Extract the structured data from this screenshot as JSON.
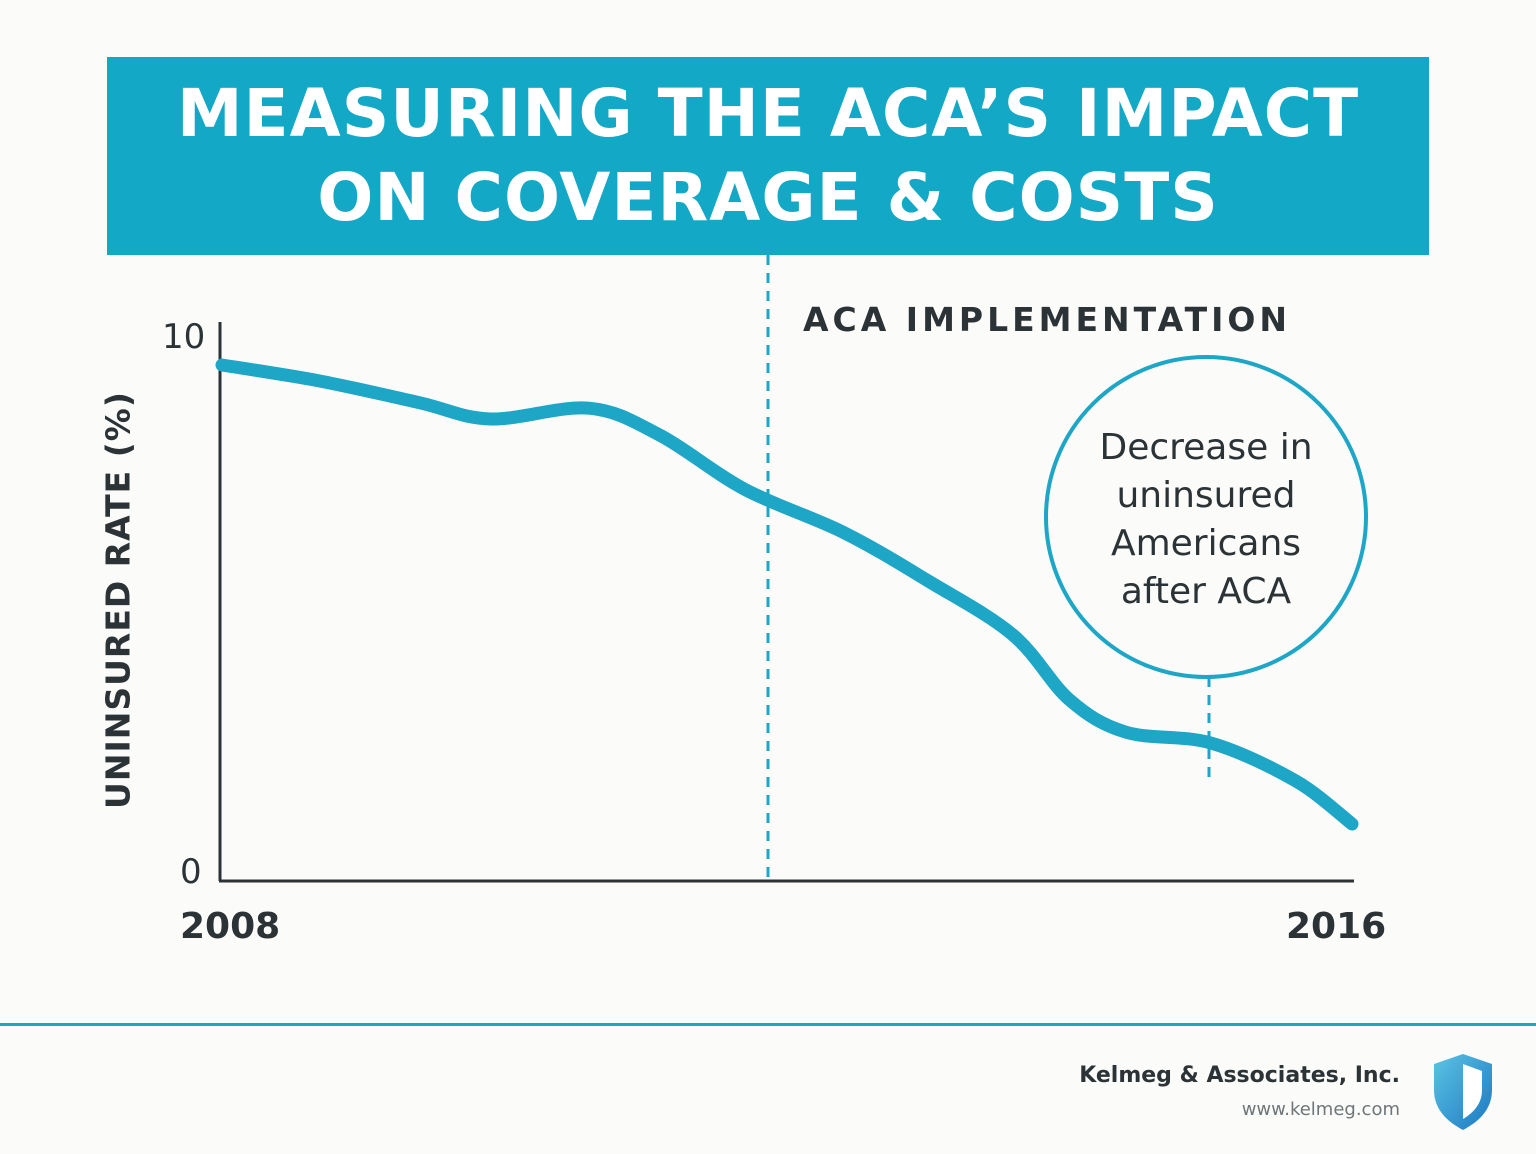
{
  "title": {
    "line1": "MEASURING THE ACA’S IMPACT",
    "line2": "ON COVERAGE & COSTS"
  },
  "chart_data": {
    "type": "line",
    "ylabel": "UNINSURED RATE (%)",
    "xlabel": "",
    "ylim": [
      0,
      10
    ],
    "yticks": [
      "10",
      "0"
    ],
    "xlim": [
      2008,
      2016
    ],
    "xticks": [
      "2008",
      "2016"
    ],
    "grid": false,
    "series": [
      {
        "color": "#1ea6c6",
        "points": [
          [
            2008.0,
            9.5
          ],
          [
            2008.7,
            9.2
          ],
          [
            2009.4,
            8.8
          ],
          [
            2009.9,
            8.5
          ],
          [
            2010.6,
            8.7
          ],
          [
            2011.1,
            8.2
          ],
          [
            2011.7,
            7.2
          ],
          [
            2012.4,
            6.4
          ],
          [
            2013.0,
            5.5
          ],
          [
            2013.6,
            4.5
          ],
          [
            2014.0,
            3.3
          ],
          [
            2014.4,
            2.7
          ],
          [
            2015.0,
            2.5
          ],
          [
            2015.6,
            1.8
          ],
          [
            2016.0,
            1.0
          ]
        ]
      }
    ],
    "annotations": {
      "implementation_label": "ACA IMPLEMENTATION",
      "implementation_x": 2012.8,
      "callout_lines": [
        "Decrease in",
        "uninsured",
        "Americans",
        "after ACA"
      ],
      "callout_x": 2015.5
    }
  },
  "footer": {
    "company": "Kelmeg & Associates, Inc.",
    "url": "www.kelmeg.com"
  },
  "colors": {
    "accent": "#13a8c6",
    "line": "#1ea6c6",
    "text": "#2b3336",
    "background": "#fbfbf9"
  },
  "icons": {
    "logo": "shield-icon"
  }
}
